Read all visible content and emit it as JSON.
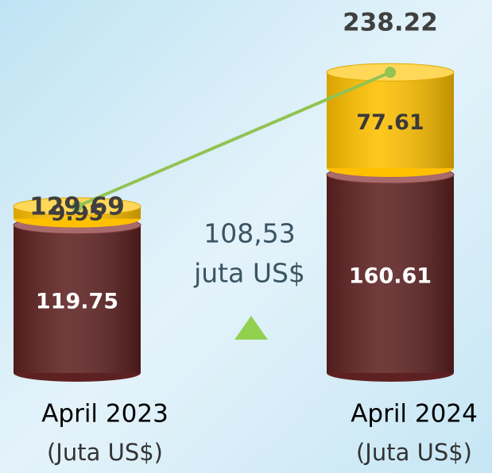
{
  "chart_data": {
    "type": "bar",
    "stacked": true,
    "categories": [
      "April 2023",
      "April 2024"
    ],
    "category_unit": "(Juta US$)",
    "series": [
      {
        "color": "#5e2121",
        "values": [
          119.75,
          160.61
        ]
      },
      {
        "color": "#ffc000",
        "values": [
          9.95,
          77.61
        ]
      },
      {
        "type": "line",
        "color": "#92c353",
        "values": [
          129.69,
          238.22
        ]
      }
    ],
    "ylim": [
      0,
      300
    ],
    "annotation": [
      "108,53",
      "juta US$"
    ],
    "annotation_color": "#92d050"
  }
}
